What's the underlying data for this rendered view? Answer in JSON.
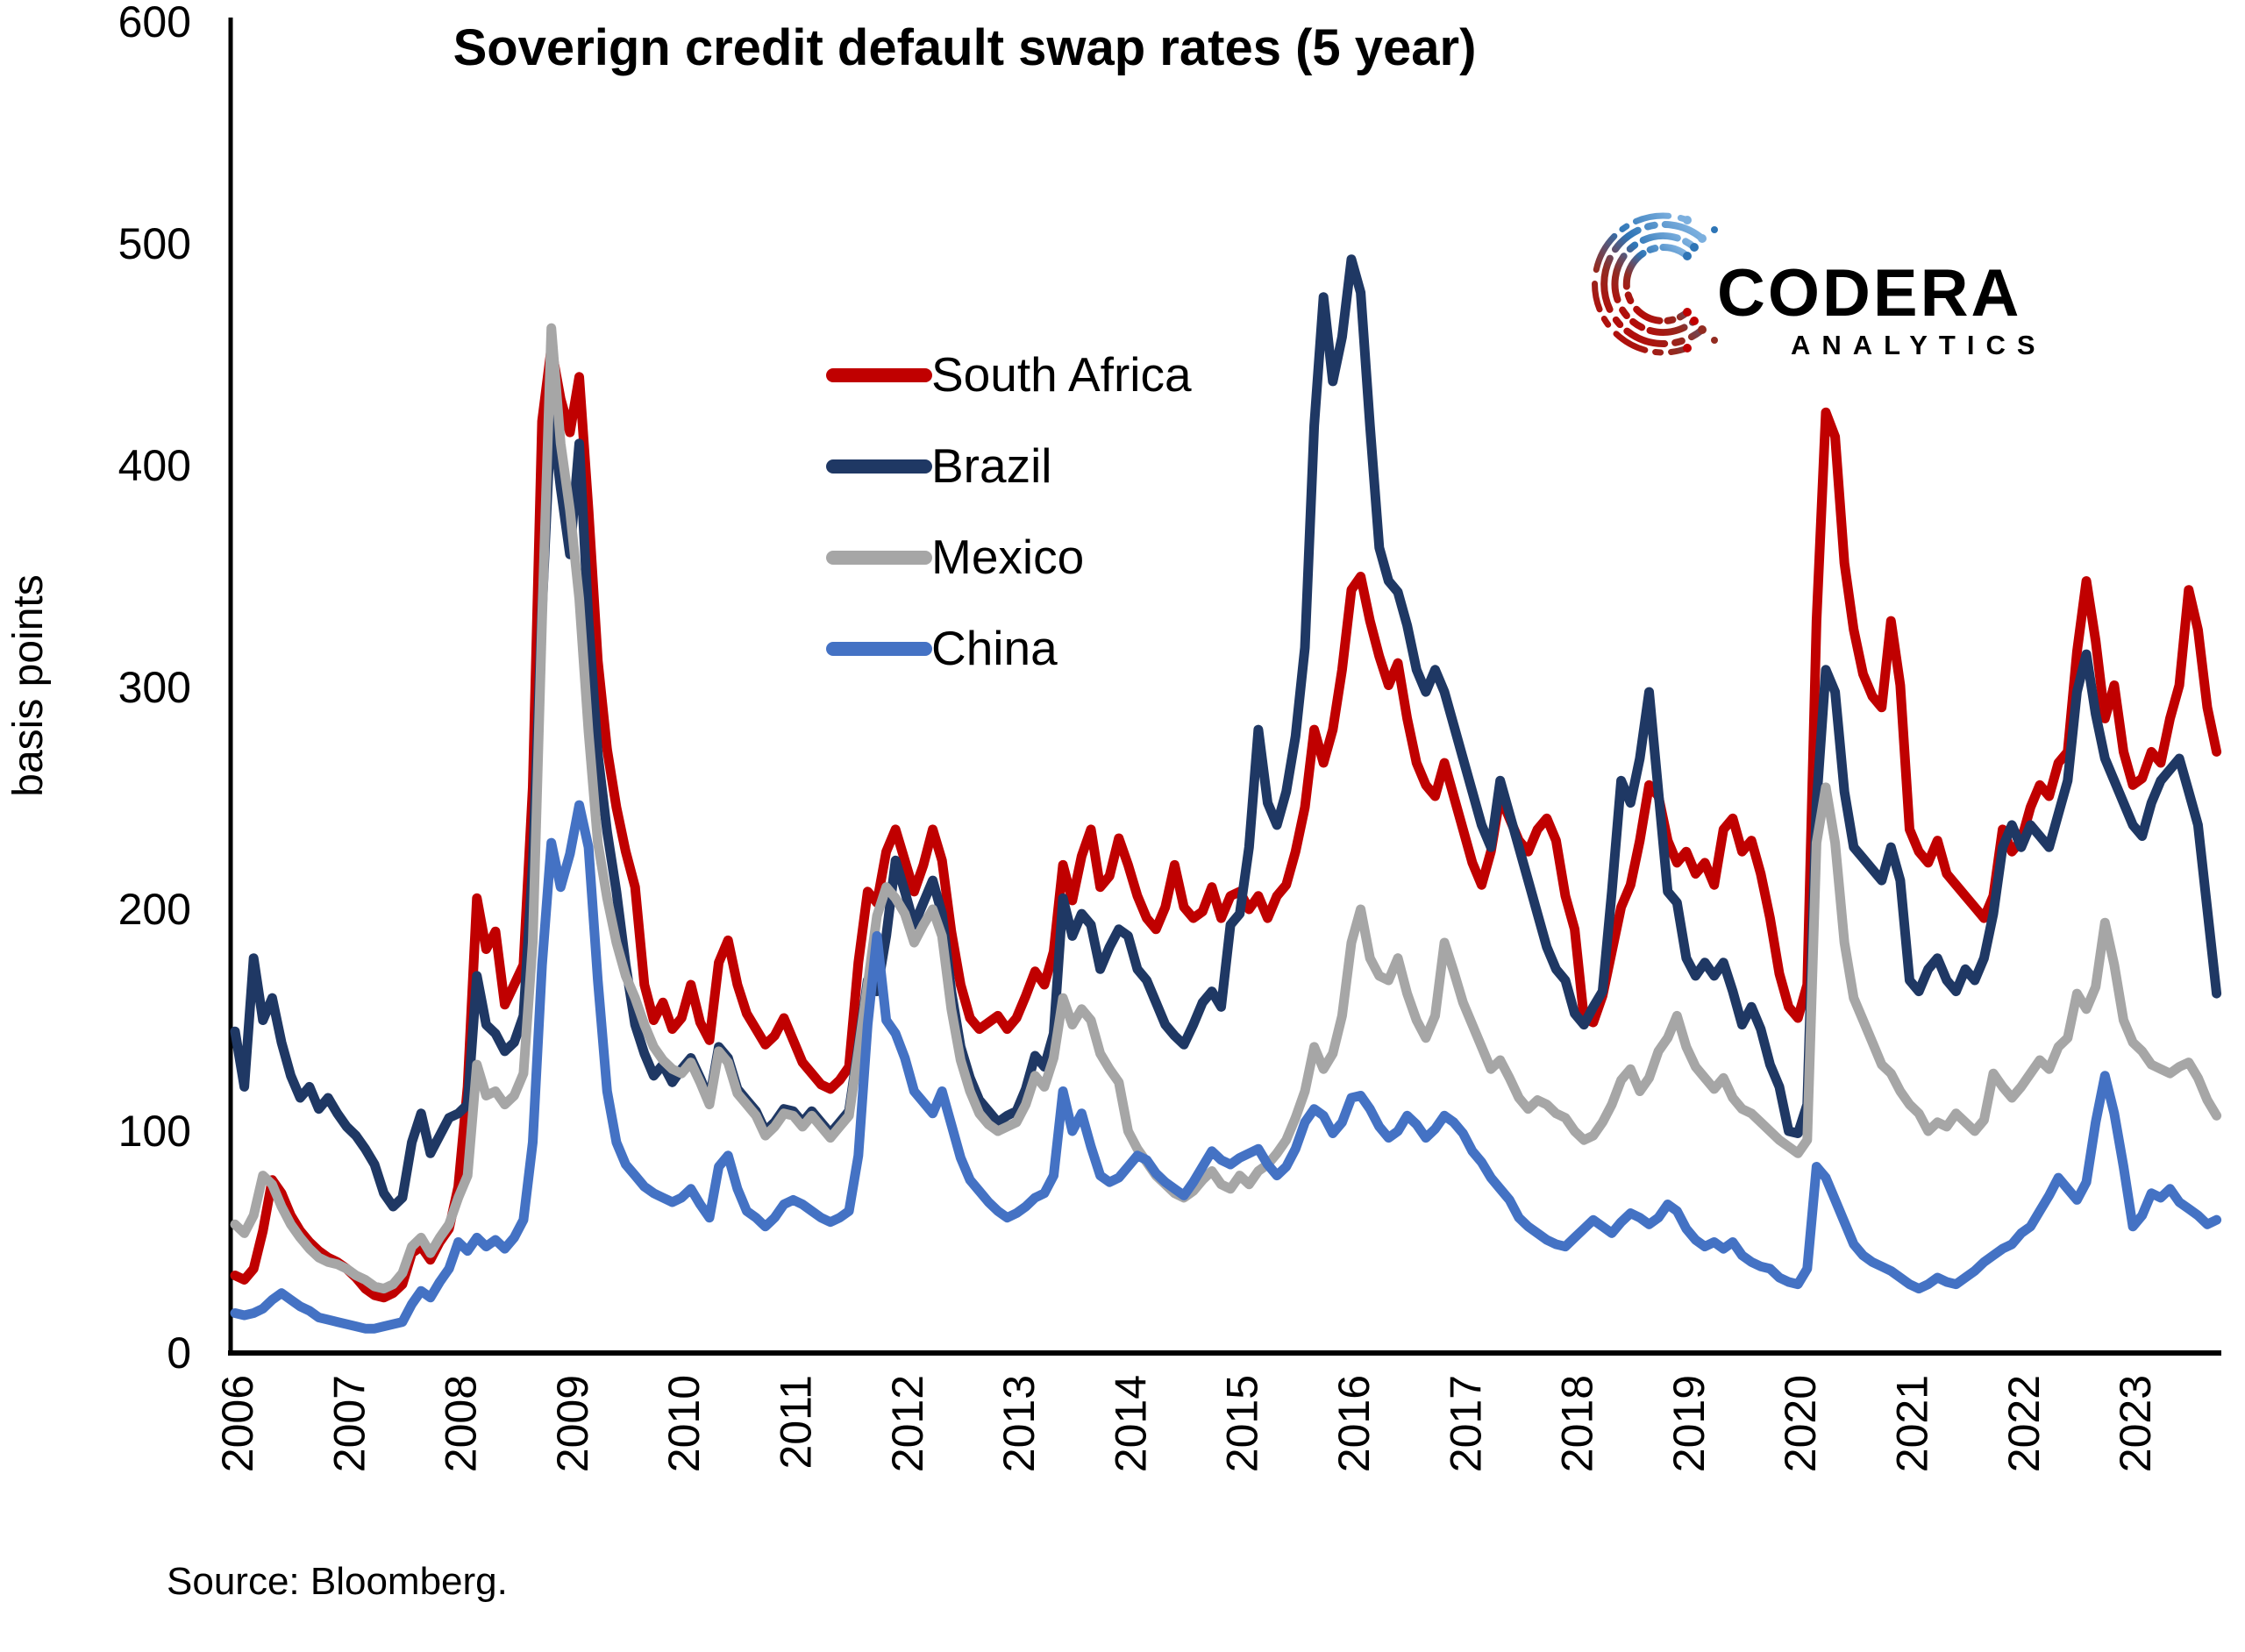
{
  "chart_data": {
    "type": "line",
    "title": "Soverign credit default swap rates (5 year)",
    "ylabel": "basis points",
    "ylim": [
      0,
      600
    ],
    "yticks": [
      600,
      500,
      400,
      300,
      200,
      100,
      0
    ],
    "x_years": [
      2006,
      2007,
      2008,
      2009,
      2010,
      2011,
      2012,
      2013,
      2014,
      2015,
      2016,
      2017,
      2018,
      2019,
      2020,
      2021,
      2022,
      2023
    ],
    "points_per_year": 12,
    "x_start": "2006-01",
    "x_end": "2023-10",
    "grid": "off",
    "legend_position": "inside-upper-center-left",
    "series": [
      {
        "name": "South Africa",
        "color": "#C00000",
        "values": [
          35,
          33,
          38,
          55,
          78,
          72,
          62,
          55,
          50,
          46,
          43,
          41,
          38,
          34,
          29,
          26,
          25,
          27,
          31,
          45,
          48,
          42,
          50,
          56,
          75,
          120,
          205,
          182,
          190,
          157,
          166,
          175,
          255,
          420,
          453,
          430,
          415,
          440,
          380,
          312,
          272,
          246,
          226,
          210,
          166,
          150,
          158,
          146,
          151,
          166,
          149,
          141,
          176,
          186,
          166,
          153,
          146,
          139,
          143,
          151,
          141,
          131,
          126,
          121,
          119,
          123,
          129,
          176,
          208,
          203,
          226,
          236,
          222,
          208,
          220,
          236,
          222,
          190,
          166,
          151,
          146,
          149,
          152,
          146,
          151,
          161,
          172,
          166,
          181,
          220,
          204,
          224,
          236,
          210,
          215,
          232,
          220,
          206,
          196,
          191,
          201,
          220,
          201,
          196,
          199,
          210,
          196,
          206,
          208,
          200,
          206,
          196,
          206,
          211,
          226,
          246,
          281,
          266,
          281,
          308,
          344,
          350,
          330,
          314,
          301,
          311,
          286,
          266,
          256,
          251,
          266,
          251,
          236,
          221,
          211,
          226,
          251,
          241,
          231,
          226,
          236,
          241,
          231,
          206,
          191,
          151,
          149,
          161,
          181,
          201,
          211,
          231,
          256,
          251,
          231,
          221,
          226,
          216,
          221,
          211,
          236,
          241,
          226,
          231,
          216,
          196,
          171,
          156,
          151,
          166,
          330,
          424,
          413,
          356,
          326,
          306,
          296,
          291,
          330,
          301,
          236,
          226,
          221,
          231,
          216,
          211,
          206,
          201,
          196,
          206,
          236,
          226,
          231,
          246,
          256,
          251,
          266,
          271,
          316,
          348,
          321,
          286,
          301,
          271,
          256,
          259,
          271,
          266,
          286,
          301,
          344,
          326,
          291,
          271
        ]
      },
      {
        "name": "Brazil",
        "color": "#1F3864",
        "values": [
          145,
          120,
          178,
          150,
          160,
          140,
          125,
          115,
          120,
          110,
          115,
          108,
          102,
          98,
          92,
          85,
          72,
          66,
          70,
          95,
          108,
          90,
          98,
          106,
          108,
          112,
          170,
          148,
          144,
          136,
          140,
          152,
          220,
          335,
          425,
          390,
          360,
          410,
          330,
          270,
          235,
          208,
          175,
          148,
          135,
          125,
          130,
          122,
          128,
          133,
          124,
          114,
          138,
          133,
          119,
          114,
          109,
          100,
          104,
          110,
          109,
          104,
          109,
          104,
          99,
          104,
          109,
          138,
          168,
          163,
          188,
          222,
          208,
          193,
          203,
          213,
          198,
          163,
          138,
          124,
          114,
          109,
          104,
          107,
          109,
          119,
          134,
          129,
          144,
          205,
          188,
          198,
          193,
          173,
          183,
          191,
          188,
          173,
          168,
          158,
          148,
          143,
          139,
          148,
          158,
          163,
          156,
          193,
          198,
          228,
          281,
          248,
          238,
          253,
          278,
          318,
          418,
          476,
          438,
          458,
          493,
          478,
          418,
          363,
          348,
          343,
          328,
          308,
          298,
          308,
          298,
          283,
          268,
          253,
          238,
          228,
          258,
          243,
          228,
          213,
          198,
          183,
          173,
          168,
          153,
          148,
          156,
          163,
          208,
          258,
          248,
          268,
          298,
          253,
          208,
          203,
          178,
          170,
          176,
          170,
          176,
          163,
          148,
          156,
          146,
          130,
          120,
          100,
          99,
          112,
          248,
          308,
          298,
          253,
          228,
          223,
          218,
          213,
          228,
          213,
          168,
          163,
          173,
          178,
          168,
          163,
          173,
          168,
          178,
          198,
          228,
          238,
          228,
          238,
          233,
          228,
          243,
          258,
          298,
          315,
          288,
          268,
          258,
          248,
          238,
          233,
          248,
          258,
          263,
          268,
          253,
          238,
          200,
          162
        ]
      },
      {
        "name": "Mexico",
        "color": "#A6A6A6",
        "values": [
          58,
          54,
          62,
          80,
          76,
          66,
          58,
          52,
          47,
          43,
          41,
          40,
          38,
          35,
          33,
          30,
          29,
          31,
          36,
          48,
          52,
          45,
          52,
          58,
          70,
          80,
          130,
          116,
          118,
          112,
          116,
          126,
          185,
          330,
          462,
          410,
          380,
          340,
          280,
          230,
          205,
          185,
          170,
          160,
          148,
          138,
          132,
          128,
          126,
          131,
          122,
          112,
          136,
          131,
          117,
          112,
          107,
          98,
          102,
          108,
          107,
          102,
          107,
          102,
          97,
          102,
          107,
          136,
          166,
          197,
          210,
          205,
          198,
          185,
          193,
          200,
          188,
          155,
          132,
          118,
          108,
          103,
          100,
          102,
          104,
          112,
          125,
          120,
          133,
          160,
          148,
          155,
          150,
          135,
          128,
          122,
          100,
          92,
          86,
          80,
          76,
          72,
          70,
          73,
          78,
          82,
          76,
          74,
          80,
          76,
          82,
          85,
          90,
          96,
          106,
          118,
          138,
          128,
          135,
          152,
          185,
          200,
          178,
          170,
          168,
          178,
          162,
          150,
          142,
          152,
          185,
          172,
          158,
          148,
          138,
          128,
          132,
          124,
          115,
          110,
          114,
          112,
          108,
          106,
          100,
          96,
          98,
          104,
          112,
          123,
          128,
          118,
          124,
          136,
          142,
          152,
          138,
          129,
          124,
          119,
          124,
          115,
          110,
          108,
          104,
          100,
          96,
          93,
          90,
          96,
          230,
          255,
          230,
          185,
          160,
          150,
          140,
          130,
          126,
          118,
          112,
          108,
          100,
          104,
          102,
          108,
          104,
          100,
          105,
          126,
          120,
          115,
          120,
          126,
          132,
          128,
          138,
          142,
          162,
          155,
          165,
          194,
          175,
          150,
          140,
          136,
          130,
          128,
          126,
          129,
          131,
          124,
          114,
          107
        ]
      },
      {
        "name": "China",
        "color": "#4472C4",
        "values": [
          18,
          17,
          18,
          20,
          24,
          27,
          24,
          21,
          19,
          16,
          15,
          14,
          13,
          12,
          11,
          11,
          12,
          13,
          14,
          22,
          28,
          25,
          32,
          38,
          50,
          46,
          52,
          48,
          51,
          47,
          52,
          60,
          95,
          175,
          230,
          210,
          225,
          247,
          228,
          168,
          118,
          95,
          85,
          80,
          75,
          72,
          70,
          68,
          70,
          74,
          67,
          61,
          84,
          89,
          74,
          64,
          61,
          57,
          61,
          67,
          69,
          67,
          64,
          61,
          59,
          61,
          64,
          89,
          148,
          188,
          150,
          144,
          133,
          118,
          113,
          108,
          118,
          103,
          88,
          78,
          73,
          68,
          64,
          61,
          63,
          66,
          70,
          72,
          80,
          118,
          100,
          108,
          93,
          80,
          77,
          79,
          84,
          89,
          87,
          81,
          77,
          74,
          71,
          77,
          84,
          91,
          87,
          85,
          88,
          90,
          92,
          85,
          80,
          84,
          92,
          104,
          110,
          107,
          99,
          104,
          115,
          116,
          110,
          102,
          97,
          100,
          107,
          103,
          97,
          101,
          107,
          104,
          99,
          91,
          86,
          79,
          74,
          69,
          61,
          57,
          54,
          51,
          49,
          48,
          52,
          56,
          60,
          57,
          54,
          59,
          63,
          61,
          58,
          61,
          67,
          64,
          56,
          51,
          48,
          50,
          47,
          50,
          44,
          41,
          39,
          38,
          34,
          32,
          31,
          38,
          84,
          79,
          69,
          59,
          49,
          44,
          41,
          39,
          37,
          34,
          31,
          29,
          31,
          34,
          32,
          31,
          34,
          37,
          41,
          44,
          47,
          49,
          54,
          57,
          64,
          71,
          79,
          74,
          69,
          77,
          104,
          125,
          108,
          84,
          57,
          62,
          72,
          70,
          74,
          68,
          65,
          62,
          58,
          60
        ]
      }
    ]
  },
  "logo": {
    "line1": "CODERA",
    "line2": "ANALYTICS",
    "accent_blue": "#2E75B6",
    "accent_light_blue": "#7BAFDE",
    "accent_red": "#C00000",
    "accent_dark_red": "#922B21"
  },
  "source_note": "Source: Bloomberg.",
  "axis_color": "#000000"
}
